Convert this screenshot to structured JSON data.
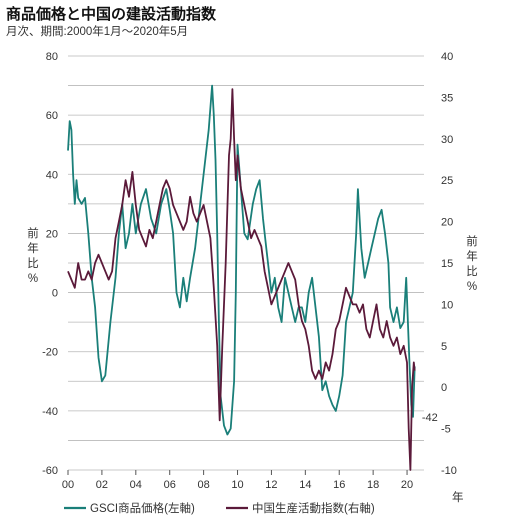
{
  "chart_data": {
    "type": "line",
    "title": "商品価格と中国の建設活動指数",
    "subtitle": "月次、期間:2000年1月〜2020年5月",
    "ylabel_left": "前年比%",
    "ylabel_right": "前年比%",
    "xlabel": "年",
    "ylim_left": [
      -60,
      80
    ],
    "ylim_right": [
      -10,
      40
    ],
    "left_ticks": [
      80,
      60,
      40,
      20,
      0,
      -20,
      -40,
      -60
    ],
    "right_ticks": [
      40,
      35,
      30,
      25,
      20,
      15,
      10,
      5,
      0,
      -5,
      -10
    ],
    "x_ticks": [
      "00",
      "02",
      "04",
      "06",
      "08",
      "10",
      "12",
      "14",
      "16",
      "18",
      "20"
    ],
    "grid": true,
    "legend_position": "bottom",
    "annotation": {
      "text": "-42",
      "x": 2020.4,
      "y_left": -42
    },
    "series": [
      {
        "name": "GSCI商品価格(左軸)",
        "axis": "left",
        "color": "#1a7f79",
        "points": [
          [
            2000.0,
            48
          ],
          [
            2000.1,
            58
          ],
          [
            2000.2,
            55
          ],
          [
            2000.3,
            40
          ],
          [
            2000.4,
            30
          ],
          [
            2000.5,
            38
          ],
          [
            2000.6,
            32
          ],
          [
            2000.8,
            30
          ],
          [
            2001.0,
            32
          ],
          [
            2001.2,
            20
          ],
          [
            2001.4,
            5
          ],
          [
            2001.6,
            -5
          ],
          [
            2001.8,
            -22
          ],
          [
            2002.0,
            -30
          ],
          [
            2002.2,
            -28
          ],
          [
            2002.5,
            -10
          ],
          [
            2002.8,
            5
          ],
          [
            2003.0,
            20
          ],
          [
            2003.2,
            30
          ],
          [
            2003.4,
            15
          ],
          [
            2003.6,
            20
          ],
          [
            2003.8,
            30
          ],
          [
            2004.0,
            20
          ],
          [
            2004.3,
            30
          ],
          [
            2004.6,
            35
          ],
          [
            2004.9,
            25
          ],
          [
            2005.2,
            20
          ],
          [
            2005.5,
            30
          ],
          [
            2005.8,
            35
          ],
          [
            2006.0,
            28
          ],
          [
            2006.2,
            20
          ],
          [
            2006.4,
            0
          ],
          [
            2006.6,
            -5
          ],
          [
            2006.8,
            5
          ],
          [
            2007.0,
            -3
          ],
          [
            2007.2,
            5
          ],
          [
            2007.5,
            15
          ],
          [
            2007.8,
            30
          ],
          [
            2008.0,
            40
          ],
          [
            2008.3,
            55
          ],
          [
            2008.5,
            70
          ],
          [
            2008.6,
            60
          ],
          [
            2008.7,
            45
          ],
          [
            2008.8,
            20
          ],
          [
            2008.9,
            -10
          ],
          [
            2009.0,
            -35
          ],
          [
            2009.2,
            -45
          ],
          [
            2009.4,
            -48
          ],
          [
            2009.6,
            -46
          ],
          [
            2009.8,
            -30
          ],
          [
            2009.9,
            0
          ],
          [
            2010.0,
            50
          ],
          [
            2010.2,
            35
          ],
          [
            2010.4,
            20
          ],
          [
            2010.6,
            18
          ],
          [
            2010.9,
            30
          ],
          [
            2011.1,
            35
          ],
          [
            2011.3,
            38
          ],
          [
            2011.5,
            25
          ],
          [
            2011.7,
            15
          ],
          [
            2011.9,
            5
          ],
          [
            2012.0,
            0
          ],
          [
            2012.2,
            5
          ],
          [
            2012.4,
            -5
          ],
          [
            2012.6,
            -10
          ],
          [
            2012.8,
            5
          ],
          [
            2013.0,
            0
          ],
          [
            2013.2,
            -5
          ],
          [
            2013.4,
            -10
          ],
          [
            2013.6,
            -5
          ],
          [
            2013.8,
            -5
          ],
          [
            2014.0,
            -10
          ],
          [
            2014.2,
            0
          ],
          [
            2014.4,
            5
          ],
          [
            2014.6,
            -5
          ],
          [
            2014.8,
            -15
          ],
          [
            2015.0,
            -33
          ],
          [
            2015.2,
            -30
          ],
          [
            2015.4,
            -35
          ],
          [
            2015.6,
            -38
          ],
          [
            2015.8,
            -40
          ],
          [
            2016.0,
            -35
          ],
          [
            2016.2,
            -28
          ],
          [
            2016.4,
            -10
          ],
          [
            2016.6,
            -5
          ],
          [
            2016.8,
            0
          ],
          [
            2017.0,
            20
          ],
          [
            2017.1,
            35
          ],
          [
            2017.3,
            15
          ],
          [
            2017.5,
            5
          ],
          [
            2017.7,
            10
          ],
          [
            2017.9,
            15
          ],
          [
            2018.1,
            20
          ],
          [
            2018.3,
            25
          ],
          [
            2018.5,
            28
          ],
          [
            2018.7,
            20
          ],
          [
            2018.9,
            10
          ],
          [
            2019.0,
            -5
          ],
          [
            2019.2,
            -10
          ],
          [
            2019.4,
            -5
          ],
          [
            2019.6,
            -12
          ],
          [
            2019.8,
            -10
          ],
          [
            2019.95,
            5
          ],
          [
            2020.05,
            -10
          ],
          [
            2020.15,
            -25
          ],
          [
            2020.25,
            -38
          ],
          [
            2020.35,
            -42
          ],
          [
            2020.45,
            -25
          ]
        ]
      },
      {
        "name": "中国生産活動指数(右軸)",
        "axis": "right",
        "color": "#5b1a3a",
        "points": [
          [
            2000.0,
            14
          ],
          [
            2000.2,
            13
          ],
          [
            2000.4,
            12
          ],
          [
            2000.6,
            15
          ],
          [
            2000.8,
            13
          ],
          [
            2001.0,
            13
          ],
          [
            2001.2,
            14
          ],
          [
            2001.4,
            13
          ],
          [
            2001.6,
            15
          ],
          [
            2001.8,
            16
          ],
          [
            2002.0,
            15
          ],
          [
            2002.2,
            14
          ],
          [
            2002.4,
            13
          ],
          [
            2002.6,
            14
          ],
          [
            2002.8,
            18
          ],
          [
            2003.0,
            20
          ],
          [
            2003.2,
            22
          ],
          [
            2003.4,
            25
          ],
          [
            2003.6,
            23
          ],
          [
            2003.8,
            26
          ],
          [
            2004.0,
            22
          ],
          [
            2004.2,
            19
          ],
          [
            2004.4,
            18
          ],
          [
            2004.6,
            17
          ],
          [
            2004.8,
            19
          ],
          [
            2005.0,
            18
          ],
          [
            2005.2,
            20
          ],
          [
            2005.4,
            22
          ],
          [
            2005.6,
            24
          ],
          [
            2005.8,
            25
          ],
          [
            2006.0,
            24
          ],
          [
            2006.2,
            22
          ],
          [
            2006.4,
            21
          ],
          [
            2006.6,
            20
          ],
          [
            2006.8,
            19
          ],
          [
            2007.0,
            20
          ],
          [
            2007.2,
            23
          ],
          [
            2007.4,
            21
          ],
          [
            2007.6,
            20
          ],
          [
            2007.8,
            21
          ],
          [
            2008.0,
            22
          ],
          [
            2008.2,
            20
          ],
          [
            2008.4,
            18
          ],
          [
            2008.6,
            12
          ],
          [
            2008.8,
            5
          ],
          [
            2008.95,
            -4
          ],
          [
            2009.1,
            5
          ],
          [
            2009.3,
            15
          ],
          [
            2009.5,
            28
          ],
          [
            2009.6,
            30
          ],
          [
            2009.7,
            36
          ],
          [
            2009.8,
            30
          ],
          [
            2009.9,
            25
          ],
          [
            2010.0,
            28
          ],
          [
            2010.2,
            24
          ],
          [
            2010.4,
            22
          ],
          [
            2010.6,
            20
          ],
          [
            2010.8,
            18
          ],
          [
            2011.0,
            19
          ],
          [
            2011.2,
            18
          ],
          [
            2011.4,
            17
          ],
          [
            2011.6,
            14
          ],
          [
            2011.8,
            12
          ],
          [
            2012.0,
            10
          ],
          [
            2012.2,
            11
          ],
          [
            2012.4,
            12
          ],
          [
            2012.6,
            13
          ],
          [
            2012.8,
            14
          ],
          [
            2013.0,
            15
          ],
          [
            2013.2,
            14
          ],
          [
            2013.4,
            13
          ],
          [
            2013.6,
            10
          ],
          [
            2013.8,
            8
          ],
          [
            2014.0,
            7
          ],
          [
            2014.2,
            5
          ],
          [
            2014.4,
            2
          ],
          [
            2014.6,
            1
          ],
          [
            2014.8,
            2
          ],
          [
            2015.0,
            1
          ],
          [
            2015.2,
            3
          ],
          [
            2015.4,
            2
          ],
          [
            2015.6,
            4
          ],
          [
            2015.8,
            7
          ],
          [
            2016.0,
            8
          ],
          [
            2016.2,
            10
          ],
          [
            2016.4,
            12
          ],
          [
            2016.6,
            11
          ],
          [
            2016.8,
            10
          ],
          [
            2017.0,
            10
          ],
          [
            2017.2,
            9
          ],
          [
            2017.4,
            10
          ],
          [
            2017.6,
            7
          ],
          [
            2017.8,
            6
          ],
          [
            2018.0,
            8
          ],
          [
            2018.2,
            10
          ],
          [
            2018.4,
            7
          ],
          [
            2018.6,
            6
          ],
          [
            2018.8,
            8
          ],
          [
            2019.0,
            6
          ],
          [
            2019.2,
            5
          ],
          [
            2019.4,
            6
          ],
          [
            2019.6,
            4
          ],
          [
            2019.8,
            5
          ],
          [
            2020.0,
            3
          ],
          [
            2020.1,
            -5
          ],
          [
            2020.2,
            -10
          ],
          [
            2020.3,
            0
          ],
          [
            2020.4,
            3
          ],
          [
            2020.45,
            2
          ]
        ]
      }
    ]
  }
}
